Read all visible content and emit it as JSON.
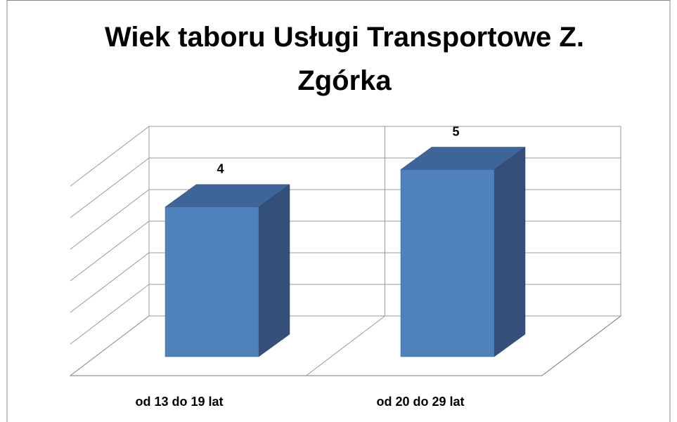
{
  "chart_data": {
    "type": "bar3d",
    "title": "Wiek taboru Usługi Transportowe Z. Zgórka",
    "categories": [
      "od 13 do 19 lat",
      "od 20 do 29 lat"
    ],
    "values": [
      4,
      5
    ],
    "color": "#4f81bd",
    "ylim": [
      0,
      6
    ],
    "yticks": [
      0,
      1,
      2,
      3,
      4,
      5,
      6
    ],
    "grid": true
  }
}
